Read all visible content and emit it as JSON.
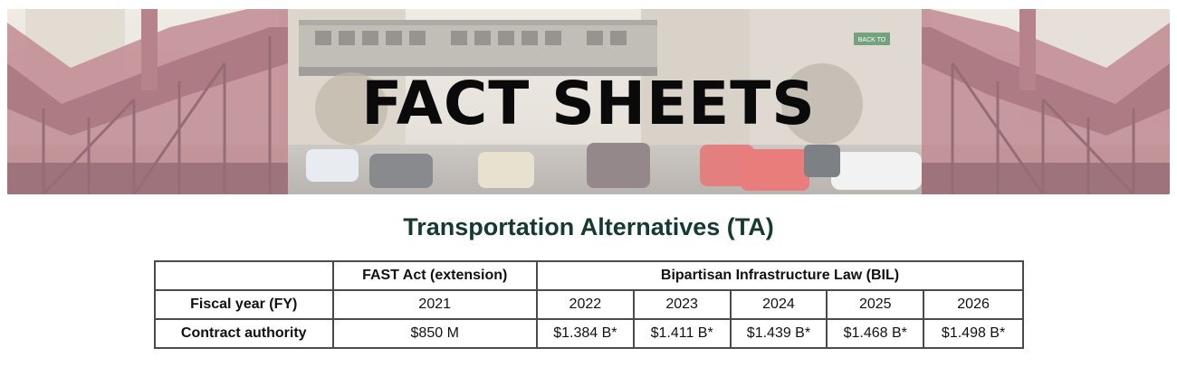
{
  "banner": {
    "title": "FACT SHEETS",
    "sign_text": "BACK TO"
  },
  "page": {
    "title": "Transportation Alternatives (TA)"
  },
  "table": {
    "header_groups": {
      "blank": "",
      "fast_act": "FAST Act (extension)",
      "bil": "Bipartisan Infrastructure Law (BIL)"
    },
    "fy_label": "Fiscal year (FY)",
    "years": [
      "2021",
      "2022",
      "2023",
      "2024",
      "2025",
      "2026"
    ],
    "ca_label": "Contract authority",
    "amounts": [
      "$850 M",
      "$1.384 B*",
      "$1.411 B*",
      "$1.439 B*",
      "$1.468 B*",
      "$1.498 B*"
    ]
  }
}
